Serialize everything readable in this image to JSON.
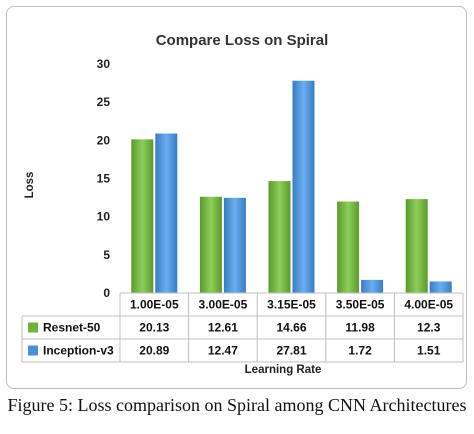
{
  "caption": "Figure 5: Loss comparison on Spiral among CNN Architectures",
  "chart_data": {
    "type": "bar",
    "title": "Compare Loss on Spiral",
    "xlabel": "Learning Rate",
    "ylabel": "Loss",
    "ylim": [
      0,
      30
    ],
    "yticks": [
      0,
      5,
      10,
      15,
      20,
      25,
      30
    ],
    "categories": [
      "1.00E-05",
      "3.00E-05",
      "3.15E-05",
      "3.50E-05",
      "4.00E-05"
    ],
    "series": [
      {
        "name": "Resnet-50",
        "color": "#6fb23c",
        "values": [
          20.13,
          12.61,
          14.66,
          11.98,
          12.3
        ],
        "labels": [
          "20.13",
          "12.61",
          "14.66",
          "11.98",
          "12.3"
        ]
      },
      {
        "name": "Inception-v3",
        "color": "#4a90d9",
        "values": [
          20.89,
          12.47,
          27.81,
          1.72,
          1.51
        ],
        "labels": [
          "20.89",
          "12.47",
          "27.81",
          "1.72",
          "1.51"
        ]
      }
    ],
    "grid": false,
    "legend": "data-table"
  }
}
